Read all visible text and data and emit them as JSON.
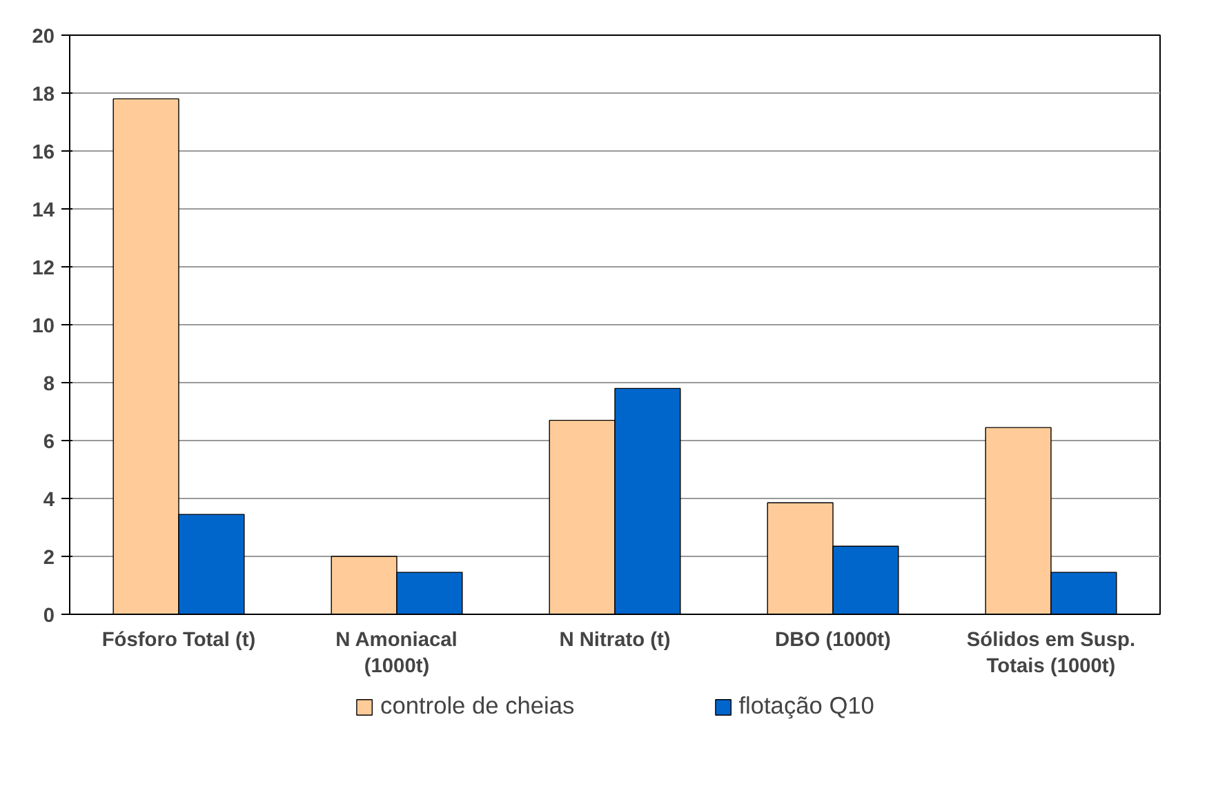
{
  "chart_data": {
    "type": "bar",
    "categories": [
      "Fósforo Total (t)",
      "N Amoniacal (1000t)",
      "N Nitrato (t)",
      "DBO (1000t)",
      "Sólidos em Susp. Totais (1000t)"
    ],
    "series": [
      {
        "name": "controle de cheias",
        "color": "#ffcc99",
        "values": [
          17.8,
          2.0,
          6.7,
          3.85,
          6.45
        ]
      },
      {
        "name": "flotação Q10",
        "color": "#0066cc",
        "values": [
          3.45,
          1.45,
          7.8,
          2.35,
          1.45
        ]
      }
    ],
    "ylim": [
      0,
      20
    ],
    "yticks": [
      0,
      2,
      4,
      6,
      8,
      10,
      12,
      14,
      16,
      18,
      20
    ],
    "grid": "y",
    "legend": "bottom"
  }
}
